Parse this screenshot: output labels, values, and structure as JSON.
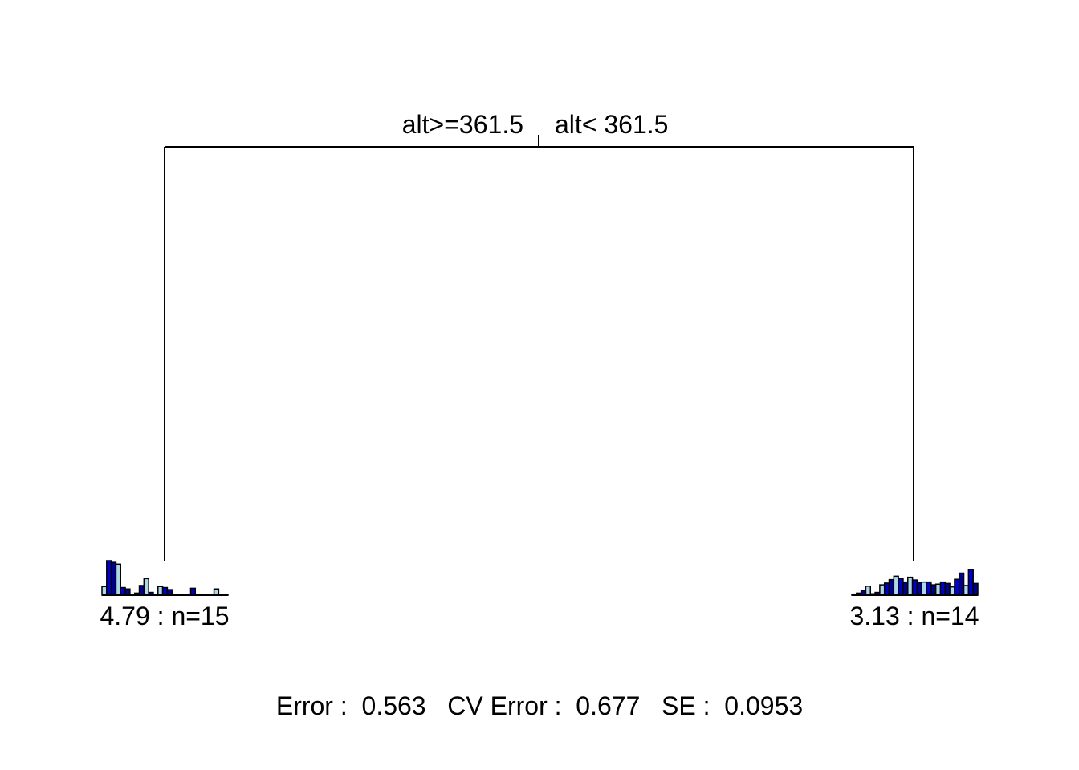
{
  "tree": {
    "root_split": {
      "left_label": "alt>=361.5",
      "right_label": "alt< 361.5"
    },
    "leaves": [
      {
        "id": "left",
        "label": "4.79 : n=15",
        "histogram": [
          0.25,
          1.0,
          0.95,
          0.9,
          0.22,
          0.18,
          0.02,
          0.06,
          0.28,
          0.48,
          0.08,
          0.02,
          0.25,
          0.22,
          0.16,
          0.01,
          0.02,
          0.02,
          0.02,
          0.2,
          0.01,
          0.01,
          0.01,
          0.01,
          0.18,
          0.01,
          0.01
        ]
      },
      {
        "id": "right",
        "label": "3.13 : n=14",
        "histogram": [
          0.03,
          0.06,
          0.14,
          0.26,
          0.04,
          0.08,
          0.3,
          0.35,
          0.45,
          0.55,
          0.48,
          0.38,
          0.52,
          0.44,
          0.36,
          0.38,
          0.38,
          0.3,
          0.32,
          0.38,
          0.34,
          0.24,
          0.46,
          0.64,
          0.28,
          0.74,
          0.34
        ]
      }
    ],
    "bar_colors": [
      "#add8e6",
      "#0000cd",
      "#00008b"
    ],
    "line_color": "#000000"
  },
  "stats": {
    "text": "Error :  0.563   CV Error :  0.677   SE :  0.0953"
  }
}
